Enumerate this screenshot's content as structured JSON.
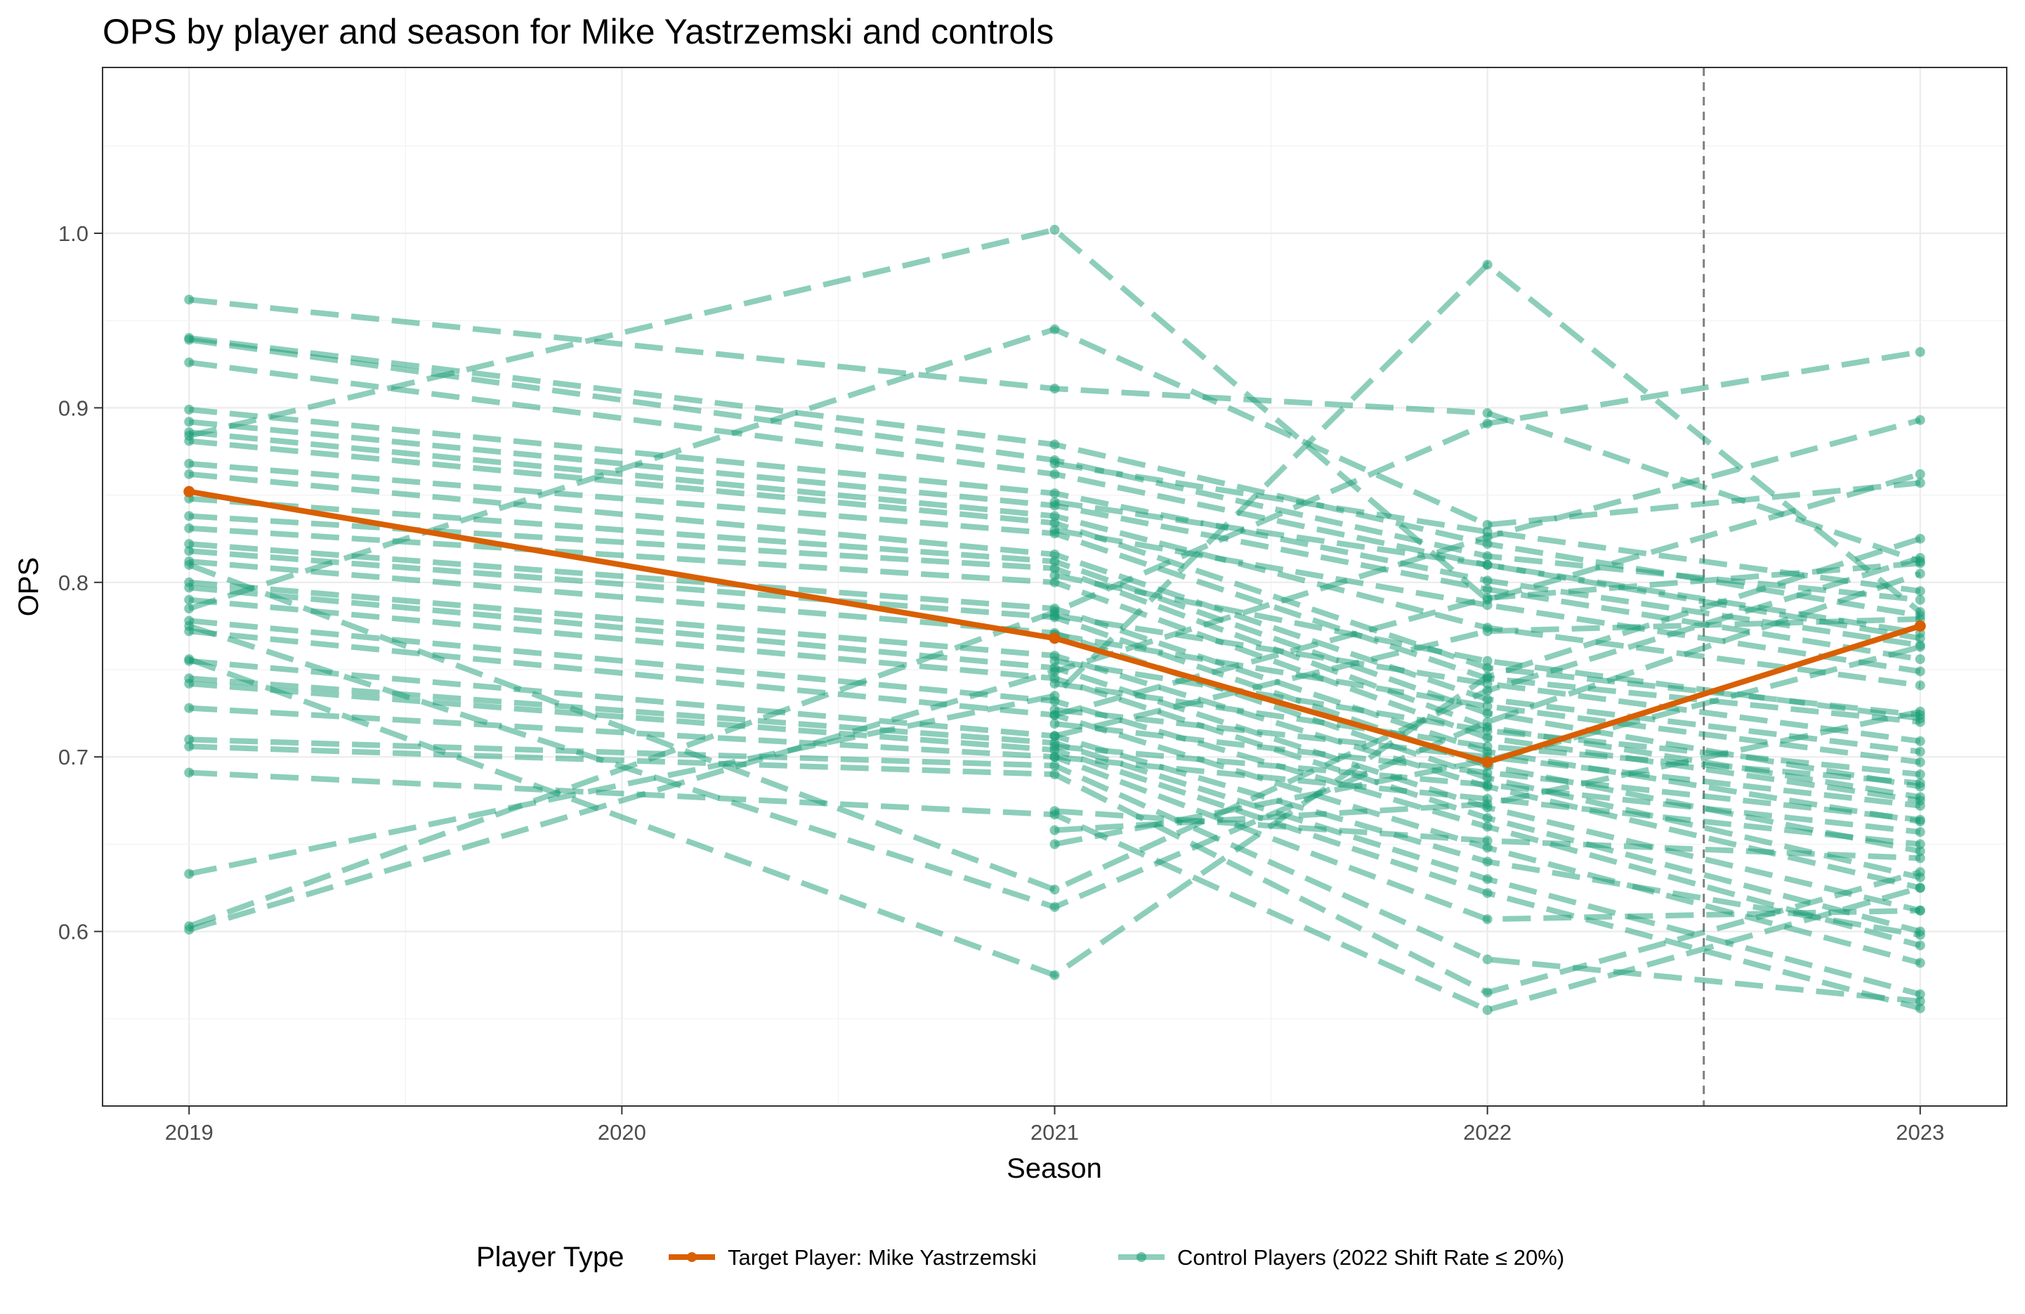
{
  "chart_data": {
    "type": "line",
    "title": "OPS by player and season for Mike Yastrzemski and controls",
    "xlabel": "Season",
    "ylabel": "OPS",
    "x": [
      2019,
      2020,
      2021,
      2022,
      2023
    ],
    "x_tick_labels": [
      "2019",
      "2020",
      "2021",
      "2022",
      "2023"
    ],
    "y_ticks": [
      0.6,
      0.7,
      0.8,
      0.9,
      1.0
    ],
    "y_tick_labels": [
      "0.6",
      "0.7",
      "0.8",
      "0.9",
      "1.0"
    ],
    "xlim": [
      2018.8,
      2023.2
    ],
    "ylim": [
      0.5,
      1.095
    ],
    "grid": true,
    "vline_x": 2022.5,
    "legend": {
      "title": "Player Type",
      "position": "bottom",
      "entries": [
        {
          "label": "Target Player: Mike Yastrzemski",
          "color": "#d95f02"
        },
        {
          "label": "Control Players (2022 Shift Rate ≤ 20%)",
          "color": "#1b9e77"
        }
      ]
    },
    "target_series": {
      "name": "Target Player: Mike Yastrzemski",
      "color": "#d95f02",
      "x": [
        2019,
        2021,
        2022,
        2023
      ],
      "values": [
        0.852,
        0.768,
        0.697,
        0.775
      ]
    },
    "control_series": [
      {
        "x": [
          2019,
          2021,
          2022,
          2023
        ],
        "values": [
          0.962,
          0.911,
          0.897,
          0.812
        ]
      },
      {
        "x": [
          2019,
          2021,
          2022,
          2023
        ],
        "values": [
          0.94,
          0.879,
          0.822,
          0.781
        ]
      },
      {
        "x": [
          2019,
          2021,
          2022,
          2023
        ],
        "values": [
          0.939,
          0.87,
          0.815,
          0.79
        ]
      },
      {
        "x": [
          2019,
          2021,
          2022,
          2023
        ],
        "values": [
          0.926,
          0.862,
          0.81,
          0.771
        ]
      },
      {
        "x": [
          2019,
          2021,
          2022,
          2023
        ],
        "values": [
          0.899,
          0.851,
          0.801,
          0.764
        ]
      },
      {
        "x": [
          2019,
          2021,
          2022,
          2023
        ],
        "values": [
          0.892,
          0.844,
          0.796,
          0.756
        ]
      },
      {
        "x": [
          2019,
          2021,
          2022,
          2023
        ],
        "values": [
          0.886,
          0.838,
          0.774,
          0.741
        ]
      },
      {
        "x": [
          2019,
          2021,
          2022,
          2023
        ],
        "values": [
          0.881,
          0.834,
          0.751,
          0.724
        ]
      },
      {
        "x": [
          2019,
          2021,
          2022,
          2023
        ],
        "values": [
          0.868,
          0.828,
          0.745,
          0.72
        ]
      },
      {
        "x": [
          2019,
          2021,
          2022,
          2023
        ],
        "values": [
          0.862,
          0.816,
          0.733,
          0.703
        ]
      },
      {
        "x": [
          2019,
          2021,
          2022,
          2023
        ],
        "values": [
          0.848,
          0.812,
          0.725,
          0.683
        ]
      },
      {
        "x": [
          2019,
          2021,
          2022,
          2023
        ],
        "values": [
          0.838,
          0.808,
          0.717,
          0.677
        ]
      },
      {
        "x": [
          2019,
          2021,
          2022,
          2023
        ],
        "values": [
          0.831,
          0.8,
          0.711,
          0.675
        ]
      },
      {
        "x": [
          2019,
          2021,
          2022,
          2023
        ],
        "values": [
          0.822,
          0.785,
          0.703,
          0.663
        ]
      },
      {
        "x": [
          2019,
          2021,
          2022,
          2023
        ],
        "values": [
          0.818,
          0.78,
          0.695,
          0.646
        ]
      },
      {
        "x": [
          2019,
          2021,
          2022,
          2023
        ],
        "values": [
          0.812,
          0.771,
          0.688,
          0.631
        ]
      },
      {
        "x": [
          2019,
          2021,
          2022,
          2023
        ],
        "values": [
          0.8,
          0.758,
          0.683,
          0.625
        ]
      },
      {
        "x": [
          2019,
          2021,
          2022,
          2023
        ],
        "values": [
          0.797,
          0.751,
          0.671,
          0.612
        ]
      },
      {
        "x": [
          2019,
          2021,
          2022,
          2023
        ],
        "values": [
          0.79,
          0.745,
          0.665,
          0.6
        ]
      },
      {
        "x": [
          2019,
          2021,
          2022,
          2023
        ],
        "values": [
          0.778,
          0.732,
          0.66,
          0.592
        ]
      },
      {
        "x": [
          2019,
          2021,
          2022,
          2023
        ],
        "values": [
          0.772,
          0.724,
          0.648,
          0.582
        ]
      },
      {
        "x": [
          2019,
          2021,
          2022,
          2023
        ],
        "values": [
          0.755,
          0.712,
          0.64,
          0.598
        ]
      },
      {
        "x": [
          2019,
          2021,
          2022,
          2023
        ],
        "values": [
          0.745,
          0.708,
          0.63,
          0.564
        ]
      },
      {
        "x": [
          2019,
          2021,
          2022,
          2023
        ],
        "values": [
          0.742,
          0.704,
          0.622,
          0.556
        ]
      },
      {
        "x": [
          2019,
          2021,
          2022,
          2023
        ],
        "values": [
          0.728,
          0.7,
          0.607,
          0.612
        ]
      },
      {
        "x": [
          2019,
          2021,
          2022,
          2023
        ],
        "values": [
          0.71,
          0.695,
          0.584,
          0.56
        ]
      },
      {
        "x": [
          2019,
          2021,
          2022,
          2023
        ],
        "values": [
          0.706,
          0.69,
          0.565,
          0.634
        ]
      },
      {
        "x": [
          2019,
          2021,
          2022,
          2023
        ],
        "values": [
          0.691,
          0.667,
          0.555,
          0.625
        ]
      },
      {
        "x": [
          2019,
          2021,
          2022,
          2023
        ],
        "values": [
          0.633,
          0.735,
          0.982,
          0.783
        ]
      },
      {
        "x": [
          2019,
          2021,
          2022,
          2023
        ],
        "values": [
          0.603,
          0.783,
          0.891,
          0.932
        ]
      },
      {
        "x": [
          2019,
          2021,
          2022,
          2023
        ],
        "values": [
          0.601,
          0.749,
          0.826,
          0.893
        ]
      },
      {
        "x": [
          2019,
          2021,
          2022,
          2023
        ],
        "values": [
          0.884,
          1.002,
          0.79,
          0.862
        ]
      },
      {
        "x": [
          2019,
          2021,
          2022,
          2023
        ],
        "values": [
          0.785,
          0.945,
          0.833,
          0.857
        ]
      },
      {
        "x": [
          2019,
          2021,
          2022,
          2023
        ],
        "values": [
          0.756,
          0.575,
          0.746,
          0.825
        ]
      },
      {
        "x": [
          2019,
          2021,
          2022,
          2023
        ],
        "values": [
          0.81,
          0.624,
          0.738,
          0.814
        ]
      },
      {
        "x": [
          2019,
          2021,
          2022,
          2023
        ],
        "values": [
          0.775,
          0.614,
          0.72,
          0.805
        ]
      },
      {
        "x": [
          2021,
          2022,
          2023
        ],
        "values": [
          0.868,
          0.829,
          0.795
        ]
      },
      {
        "x": [
          2021,
          2022,
          2023
        ],
        "values": [
          0.846,
          0.81,
          0.768
        ]
      },
      {
        "x": [
          2021,
          2022,
          2023
        ],
        "values": [
          0.83,
          0.787,
          0.749
        ]
      },
      {
        "x": [
          2021,
          2022,
          2023
        ],
        "values": [
          0.804,
          0.755,
          0.722
        ]
      },
      {
        "x": [
          2021,
          2022,
          2023
        ],
        "values": [
          0.781,
          0.742,
          0.709
        ]
      },
      {
        "x": [
          2021,
          2022,
          2023
        ],
        "values": [
          0.77,
          0.729,
          0.697
        ]
      },
      {
        "x": [
          2021,
          2022,
          2023
        ],
        "values": [
          0.755,
          0.715,
          0.69
        ]
      },
      {
        "x": [
          2021,
          2022,
          2023
        ],
        "values": [
          0.742,
          0.706,
          0.685
        ]
      },
      {
        "x": [
          2021,
          2022,
          2023
        ],
        "values": [
          0.727,
          0.7,
          0.672
        ]
      },
      {
        "x": [
          2021,
          2022,
          2023
        ],
        "values": [
          0.719,
          0.691,
          0.664
        ]
      },
      {
        "x": [
          2021,
          2022,
          2023
        ],
        "values": [
          0.706,
          0.684,
          0.657
        ]
      },
      {
        "x": [
          2021,
          2022,
          2023
        ],
        "values": [
          0.7,
          0.676,
          0.65
        ]
      },
      {
        "x": [
          2021,
          2022,
          2023
        ],
        "values": [
          0.669,
          0.652,
          0.642
        ]
      },
      {
        "x": [
          2021,
          2022,
          2023
        ],
        "values": [
          0.658,
          0.673,
          0.726
        ]
      },
      {
        "x": [
          2021,
          2022,
          2023
        ],
        "values": [
          0.65,
          0.698,
          0.763
        ]
      },
      {
        "x": [
          2021,
          2022,
          2023
        ],
        "values": [
          0.712,
          0.772,
          0.779
        ]
      },
      {
        "x": [
          2021,
          2022,
          2023
        ],
        "values": [
          0.724,
          0.791,
          0.811
        ]
      }
    ]
  }
}
